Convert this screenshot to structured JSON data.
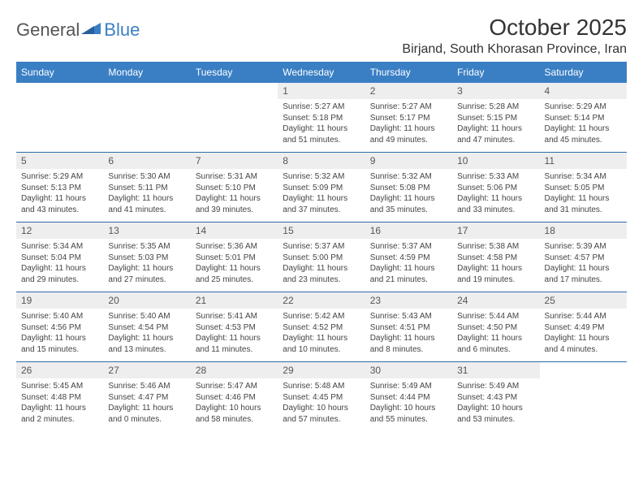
{
  "logo": {
    "general": "General",
    "blue": "Blue"
  },
  "title": "October 2025",
  "location": "Birjand, South Khorasan Province, Iran",
  "colors": {
    "header_bg": "#3a7fc4",
    "header_text": "#ffffff",
    "daynum_bg": "#eeeeee",
    "sep": "#2f6aa8"
  },
  "day_names": [
    "Sunday",
    "Monday",
    "Tuesday",
    "Wednesday",
    "Thursday",
    "Friday",
    "Saturday"
  ],
  "weeks": [
    [
      null,
      null,
      null,
      {
        "n": "1",
        "sr": "Sunrise: 5:27 AM",
        "ss": "Sunset: 5:18 PM",
        "dl": "Daylight: 11 hours and 51 minutes."
      },
      {
        "n": "2",
        "sr": "Sunrise: 5:27 AM",
        "ss": "Sunset: 5:17 PM",
        "dl": "Daylight: 11 hours and 49 minutes."
      },
      {
        "n": "3",
        "sr": "Sunrise: 5:28 AM",
        "ss": "Sunset: 5:15 PM",
        "dl": "Daylight: 11 hours and 47 minutes."
      },
      {
        "n": "4",
        "sr": "Sunrise: 5:29 AM",
        "ss": "Sunset: 5:14 PM",
        "dl": "Daylight: 11 hours and 45 minutes."
      }
    ],
    [
      {
        "n": "5",
        "sr": "Sunrise: 5:29 AM",
        "ss": "Sunset: 5:13 PM",
        "dl": "Daylight: 11 hours and 43 minutes."
      },
      {
        "n": "6",
        "sr": "Sunrise: 5:30 AM",
        "ss": "Sunset: 5:11 PM",
        "dl": "Daylight: 11 hours and 41 minutes."
      },
      {
        "n": "7",
        "sr": "Sunrise: 5:31 AM",
        "ss": "Sunset: 5:10 PM",
        "dl": "Daylight: 11 hours and 39 minutes."
      },
      {
        "n": "8",
        "sr": "Sunrise: 5:32 AM",
        "ss": "Sunset: 5:09 PM",
        "dl": "Daylight: 11 hours and 37 minutes."
      },
      {
        "n": "9",
        "sr": "Sunrise: 5:32 AM",
        "ss": "Sunset: 5:08 PM",
        "dl": "Daylight: 11 hours and 35 minutes."
      },
      {
        "n": "10",
        "sr": "Sunrise: 5:33 AM",
        "ss": "Sunset: 5:06 PM",
        "dl": "Daylight: 11 hours and 33 minutes."
      },
      {
        "n": "11",
        "sr": "Sunrise: 5:34 AM",
        "ss": "Sunset: 5:05 PM",
        "dl": "Daylight: 11 hours and 31 minutes."
      }
    ],
    [
      {
        "n": "12",
        "sr": "Sunrise: 5:34 AM",
        "ss": "Sunset: 5:04 PM",
        "dl": "Daylight: 11 hours and 29 minutes."
      },
      {
        "n": "13",
        "sr": "Sunrise: 5:35 AM",
        "ss": "Sunset: 5:03 PM",
        "dl": "Daylight: 11 hours and 27 minutes."
      },
      {
        "n": "14",
        "sr": "Sunrise: 5:36 AM",
        "ss": "Sunset: 5:01 PM",
        "dl": "Daylight: 11 hours and 25 minutes."
      },
      {
        "n": "15",
        "sr": "Sunrise: 5:37 AM",
        "ss": "Sunset: 5:00 PM",
        "dl": "Daylight: 11 hours and 23 minutes."
      },
      {
        "n": "16",
        "sr": "Sunrise: 5:37 AM",
        "ss": "Sunset: 4:59 PM",
        "dl": "Daylight: 11 hours and 21 minutes."
      },
      {
        "n": "17",
        "sr": "Sunrise: 5:38 AM",
        "ss": "Sunset: 4:58 PM",
        "dl": "Daylight: 11 hours and 19 minutes."
      },
      {
        "n": "18",
        "sr": "Sunrise: 5:39 AM",
        "ss": "Sunset: 4:57 PM",
        "dl": "Daylight: 11 hours and 17 minutes."
      }
    ],
    [
      {
        "n": "19",
        "sr": "Sunrise: 5:40 AM",
        "ss": "Sunset: 4:56 PM",
        "dl": "Daylight: 11 hours and 15 minutes."
      },
      {
        "n": "20",
        "sr": "Sunrise: 5:40 AM",
        "ss": "Sunset: 4:54 PM",
        "dl": "Daylight: 11 hours and 13 minutes."
      },
      {
        "n": "21",
        "sr": "Sunrise: 5:41 AM",
        "ss": "Sunset: 4:53 PM",
        "dl": "Daylight: 11 hours and 11 minutes."
      },
      {
        "n": "22",
        "sr": "Sunrise: 5:42 AM",
        "ss": "Sunset: 4:52 PM",
        "dl": "Daylight: 11 hours and 10 minutes."
      },
      {
        "n": "23",
        "sr": "Sunrise: 5:43 AM",
        "ss": "Sunset: 4:51 PM",
        "dl": "Daylight: 11 hours and 8 minutes."
      },
      {
        "n": "24",
        "sr": "Sunrise: 5:44 AM",
        "ss": "Sunset: 4:50 PM",
        "dl": "Daylight: 11 hours and 6 minutes."
      },
      {
        "n": "25",
        "sr": "Sunrise: 5:44 AM",
        "ss": "Sunset: 4:49 PM",
        "dl": "Daylight: 11 hours and 4 minutes."
      }
    ],
    [
      {
        "n": "26",
        "sr": "Sunrise: 5:45 AM",
        "ss": "Sunset: 4:48 PM",
        "dl": "Daylight: 11 hours and 2 minutes."
      },
      {
        "n": "27",
        "sr": "Sunrise: 5:46 AM",
        "ss": "Sunset: 4:47 PM",
        "dl": "Daylight: 11 hours and 0 minutes."
      },
      {
        "n": "28",
        "sr": "Sunrise: 5:47 AM",
        "ss": "Sunset: 4:46 PM",
        "dl": "Daylight: 10 hours and 58 minutes."
      },
      {
        "n": "29",
        "sr": "Sunrise: 5:48 AM",
        "ss": "Sunset: 4:45 PM",
        "dl": "Daylight: 10 hours and 57 minutes."
      },
      {
        "n": "30",
        "sr": "Sunrise: 5:49 AM",
        "ss": "Sunset: 4:44 PM",
        "dl": "Daylight: 10 hours and 55 minutes."
      },
      {
        "n": "31",
        "sr": "Sunrise: 5:49 AM",
        "ss": "Sunset: 4:43 PM",
        "dl": "Daylight: 10 hours and 53 minutes."
      },
      null
    ]
  ]
}
